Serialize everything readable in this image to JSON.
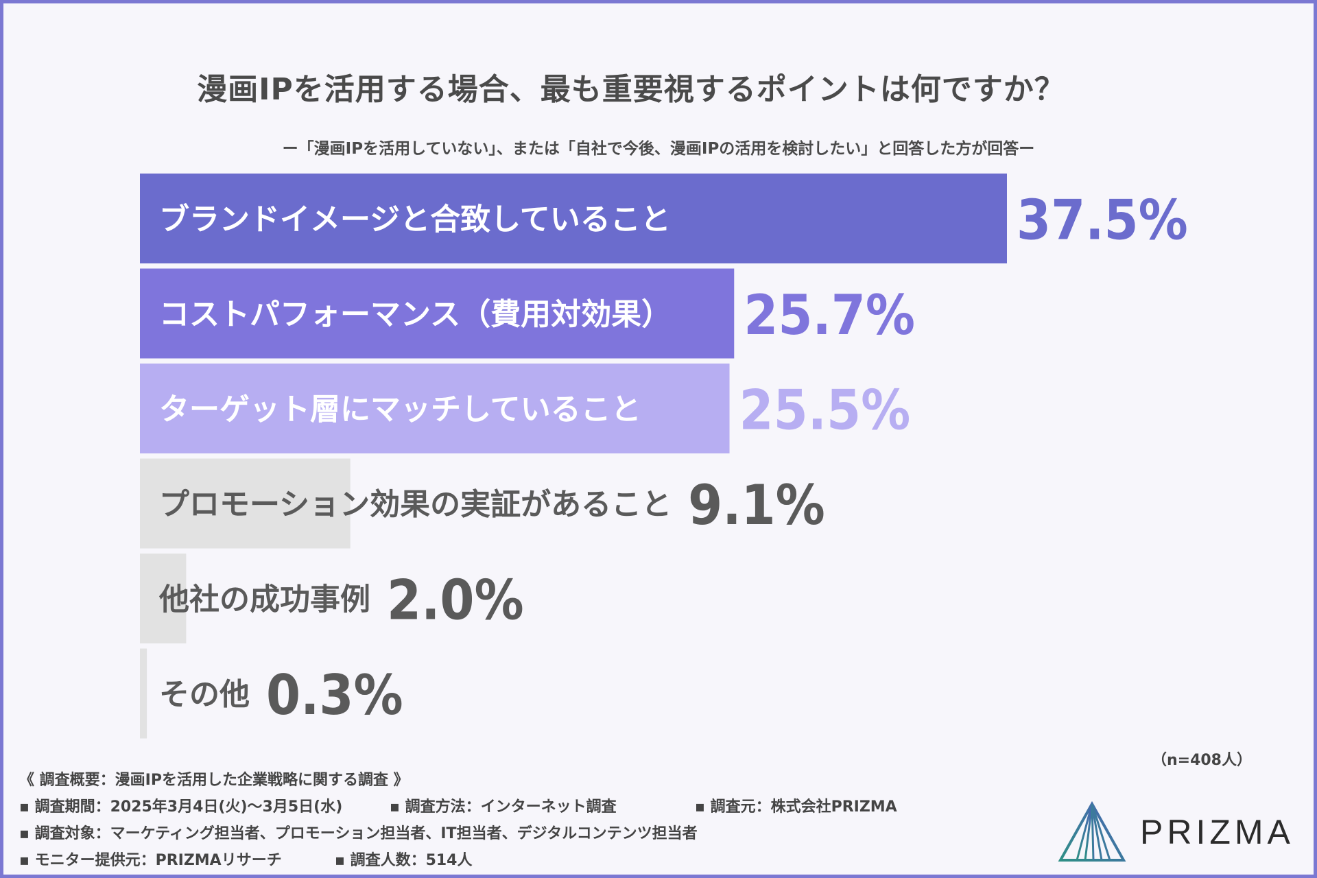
{
  "title": "漫画IPを活用する場合、最も重要視するポイントは何ですか？",
  "subtitle": "ー「漫画IPを活用していない」、または「自社で今後、漫画IPの活用を検討したい」と回答した方が回答ー",
  "n_note": "（n=408人）",
  "chart_data": {
    "type": "bar",
    "orientation": "horizontal",
    "categories": [
      "ブランドイメージと合致していること",
      "コストパフォーマンス（費用対効果）",
      "ターゲット層にマッチしていること",
      "プロモーション効果の実証があること",
      "他社の成功事例",
      "その他"
    ],
    "values": [
      37.5,
      25.7,
      25.5,
      9.1,
      2.0,
      0.3
    ],
    "value_labels": [
      "37.5%",
      "25.7%",
      "25.5%",
      "9.1%",
      "2.0%",
      "0.3%"
    ],
    "xlim": [
      0,
      37.5
    ],
    "bar_colors": [
      "#6b6ccd",
      "#7f75dc",
      "#b7aef2",
      "#e2e2e2",
      "#e2e2e2",
      "#e2e2e2"
    ],
    "label_colors": [
      "#ffffff",
      "#ffffff",
      "#ffffff",
      "#5a5a5a",
      "#5a5a5a",
      "#5a5a5a"
    ],
    "value_colors": [
      "#6b6ccd",
      "#7f75dc",
      "#b7aef2",
      "#5a5a5a",
      "#5a5a5a",
      "#5a5a5a"
    ],
    "grid": false,
    "legend": "none"
  },
  "survey": {
    "heading": "《 調査概要：漫画IPを活用した企業戦略に関する調査 》",
    "rows": [
      [
        "▪ 調査期間：2025年3月4日(火)〜3月5日(水)",
        "▪ 調査方法：インターネット調査",
        "▪ 調査元：株式会社PRIZMA"
      ],
      [
        "▪ 調査対象：マーケティング担当者、プロモーション担当者、IT担当者、デジタルコンテンツ担当者"
      ],
      [
        "▪ モニター提供元：PRIZMAリサーチ",
        "▪ 調査人数：514人"
      ]
    ]
  },
  "logo": {
    "text": "PRIZMA",
    "icon": "prism-triangle-logo",
    "colors": [
      "#2f8f86",
      "#4a63b5"
    ]
  }
}
